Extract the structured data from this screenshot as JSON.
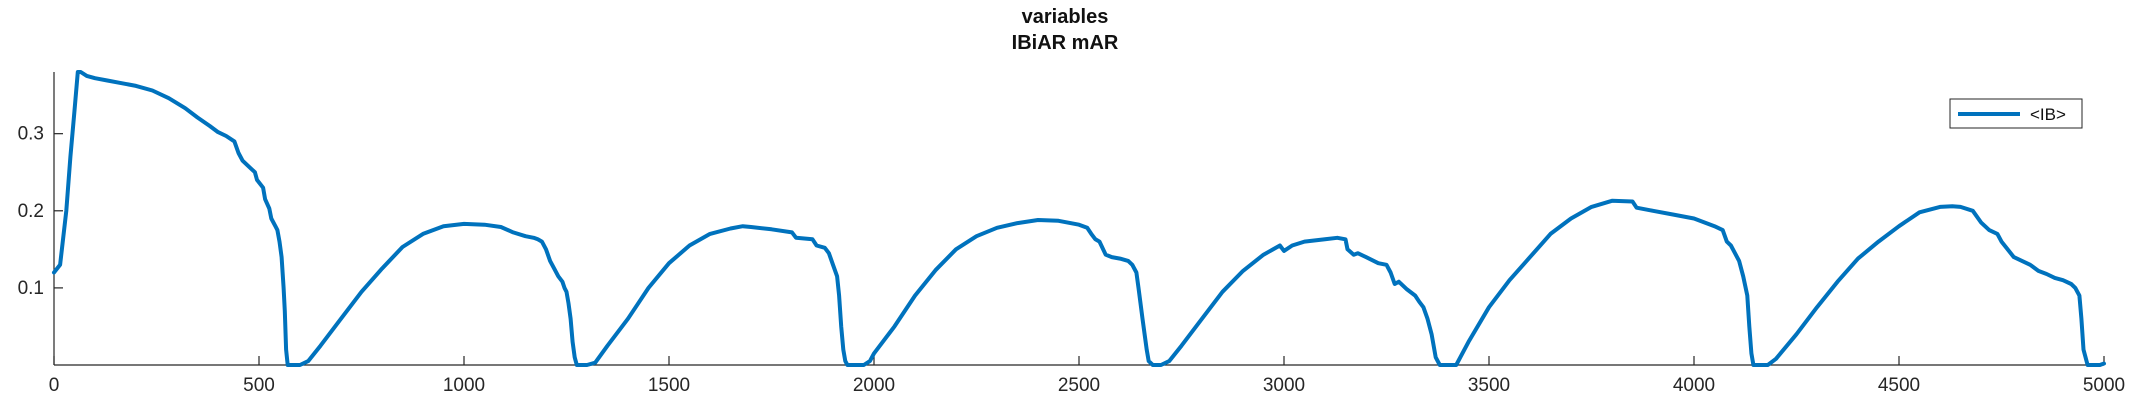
{
  "chart_data": {
    "type": "line",
    "title": "variables",
    "subtitle": "IBiAR mAR",
    "xlabel": "",
    "ylabel": "",
    "xlim": [
      0,
      5000
    ],
    "ylim": [
      0,
      0.38
    ],
    "xticks": [
      0,
      500,
      1000,
      1500,
      2000,
      2500,
      3000,
      3500,
      4000,
      4500,
      5000
    ],
    "yticks": [
      0.1,
      0.2,
      0.3
    ],
    "grid": false,
    "legend_position": "top-right",
    "series": [
      {
        "name": "<IB>",
        "color": "#0072BD",
        "points": [
          [
            0,
            0.12
          ],
          [
            15,
            0.13
          ],
          [
            30,
            0.2
          ],
          [
            40,
            0.27
          ],
          [
            50,
            0.33
          ],
          [
            58,
            0.38
          ],
          [
            65,
            0.38
          ],
          [
            80,
            0.375
          ],
          [
            100,
            0.372
          ],
          [
            130,
            0.369
          ],
          [
            160,
            0.366
          ],
          [
            200,
            0.362
          ],
          [
            240,
            0.356
          ],
          [
            280,
            0.346
          ],
          [
            320,
            0.333
          ],
          [
            350,
            0.321
          ],
          [
            380,
            0.31
          ],
          [
            400,
            0.302
          ],
          [
            420,
            0.297
          ],
          [
            440,
            0.29
          ],
          [
            450,
            0.275
          ],
          [
            460,
            0.265
          ],
          [
            480,
            0.255
          ],
          [
            490,
            0.25
          ],
          [
            495,
            0.24
          ],
          [
            510,
            0.23
          ],
          [
            515,
            0.215
          ],
          [
            525,
            0.203
          ],
          [
            530,
            0.19
          ],
          [
            540,
            0.18
          ],
          [
            545,
            0.175
          ],
          [
            550,
            0.16
          ],
          [
            555,
            0.14
          ],
          [
            560,
            0.1
          ],
          [
            563,
            0.07
          ],
          [
            566,
            0.02
          ],
          [
            570,
            0.0
          ],
          [
            600,
            0.0
          ],
          [
            620,
            0.005
          ],
          [
            650,
            0.025
          ],
          [
            700,
            0.06
          ],
          [
            750,
            0.095
          ],
          [
            800,
            0.125
          ],
          [
            850,
            0.153
          ],
          [
            900,
            0.17
          ],
          [
            950,
            0.18
          ],
          [
            1000,
            0.183
          ],
          [
            1050,
            0.182
          ],
          [
            1090,
            0.179
          ],
          [
            1120,
            0.172
          ],
          [
            1150,
            0.167
          ],
          [
            1170,
            0.165
          ],
          [
            1180,
            0.163
          ],
          [
            1190,
            0.16
          ],
          [
            1200,
            0.15
          ],
          [
            1210,
            0.135
          ],
          [
            1220,
            0.125
          ],
          [
            1230,
            0.115
          ],
          [
            1240,
            0.108
          ],
          [
            1245,
            0.1
          ],
          [
            1250,
            0.095
          ],
          [
            1255,
            0.08
          ],
          [
            1260,
            0.06
          ],
          [
            1265,
            0.03
          ],
          [
            1270,
            0.01
          ],
          [
            1275,
            0.0
          ],
          [
            1300,
            0.0
          ],
          [
            1320,
            0.003
          ],
          [
            1350,
            0.025
          ],
          [
            1400,
            0.06
          ],
          [
            1450,
            0.1
          ],
          [
            1500,
            0.132
          ],
          [
            1550,
            0.155
          ],
          [
            1600,
            0.17
          ],
          [
            1650,
            0.177
          ],
          [
            1680,
            0.18
          ],
          [
            1700,
            0.179
          ],
          [
            1750,
            0.176
          ],
          [
            1800,
            0.172
          ],
          [
            1810,
            0.165
          ],
          [
            1850,
            0.163
          ],
          [
            1860,
            0.155
          ],
          [
            1880,
            0.152
          ],
          [
            1890,
            0.145
          ],
          [
            1900,
            0.13
          ],
          [
            1910,
            0.115
          ],
          [
            1915,
            0.09
          ],
          [
            1920,
            0.05
          ],
          [
            1925,
            0.02
          ],
          [
            1930,
            0.005
          ],
          [
            1935,
            0.0
          ],
          [
            1975,
            0.0
          ],
          [
            1990,
            0.005
          ],
          [
            2000,
            0.015
          ],
          [
            2050,
            0.05
          ],
          [
            2100,
            0.09
          ],
          [
            2150,
            0.123
          ],
          [
            2200,
            0.15
          ],
          [
            2250,
            0.167
          ],
          [
            2300,
            0.178
          ],
          [
            2350,
            0.184
          ],
          [
            2400,
            0.188
          ],
          [
            2450,
            0.187
          ],
          [
            2500,
            0.182
          ],
          [
            2520,
            0.178
          ],
          [
            2530,
            0.17
          ],
          [
            2540,
            0.163
          ],
          [
            2550,
            0.16
          ],
          [
            2565,
            0.143
          ],
          [
            2580,
            0.14
          ],
          [
            2600,
            0.138
          ],
          [
            2620,
            0.135
          ],
          [
            2630,
            0.13
          ],
          [
            2640,
            0.12
          ],
          [
            2645,
            0.1
          ],
          [
            2650,
            0.08
          ],
          [
            2655,
            0.06
          ],
          [
            2660,
            0.04
          ],
          [
            2665,
            0.02
          ],
          [
            2670,
            0.005
          ],
          [
            2680,
            0.0
          ],
          [
            2700,
            0.0
          ],
          [
            2720,
            0.005
          ],
          [
            2750,
            0.025
          ],
          [
            2800,
            0.06
          ],
          [
            2850,
            0.095
          ],
          [
            2900,
            0.122
          ],
          [
            2950,
            0.143
          ],
          [
            2990,
            0.155
          ],
          [
            3000,
            0.148
          ],
          [
            3020,
            0.155
          ],
          [
            3050,
            0.16
          ],
          [
            3100,
            0.163
          ],
          [
            3130,
            0.165
          ],
          [
            3150,
            0.163
          ],
          [
            3155,
            0.15
          ],
          [
            3170,
            0.143
          ],
          [
            3180,
            0.145
          ],
          [
            3200,
            0.14
          ],
          [
            3230,
            0.132
          ],
          [
            3250,
            0.13
          ],
          [
            3260,
            0.12
          ],
          [
            3270,
            0.105
          ],
          [
            3280,
            0.108
          ],
          [
            3300,
            0.098
          ],
          [
            3320,
            0.09
          ],
          [
            3330,
            0.082
          ],
          [
            3340,
            0.075
          ],
          [
            3350,
            0.06
          ],
          [
            3360,
            0.04
          ],
          [
            3370,
            0.01
          ],
          [
            3380,
            0.0
          ],
          [
            3420,
            0.0
          ],
          [
            3430,
            0.01
          ],
          [
            3450,
            0.03
          ],
          [
            3500,
            0.075
          ],
          [
            3550,
            0.11
          ],
          [
            3600,
            0.14
          ],
          [
            3650,
            0.17
          ],
          [
            3700,
            0.19
          ],
          [
            3750,
            0.205
          ],
          [
            3800,
            0.213
          ],
          [
            3850,
            0.212
          ],
          [
            3860,
            0.204
          ],
          [
            3900,
            0.2
          ],
          [
            3950,
            0.195
          ],
          [
            4000,
            0.19
          ],
          [
            4050,
            0.18
          ],
          [
            4070,
            0.175
          ],
          [
            4080,
            0.16
          ],
          [
            4090,
            0.155
          ],
          [
            4100,
            0.145
          ],
          [
            4110,
            0.135
          ],
          [
            4120,
            0.115
          ],
          [
            4130,
            0.09
          ],
          [
            4135,
            0.05
          ],
          [
            4140,
            0.015
          ],
          [
            4145,
            0.0
          ],
          [
            4180,
            0.0
          ],
          [
            4200,
            0.008
          ],
          [
            4250,
            0.04
          ],
          [
            4300,
            0.075
          ],
          [
            4350,
            0.108
          ],
          [
            4400,
            0.138
          ],
          [
            4450,
            0.16
          ],
          [
            4500,
            0.18
          ],
          [
            4550,
            0.198
          ],
          [
            4600,
            0.205
          ],
          [
            4630,
            0.206
          ],
          [
            4650,
            0.205
          ],
          [
            4680,
            0.2
          ],
          [
            4700,
            0.185
          ],
          [
            4720,
            0.175
          ],
          [
            4740,
            0.17
          ],
          [
            4750,
            0.16
          ],
          [
            4780,
            0.14
          ],
          [
            4800,
            0.135
          ],
          [
            4820,
            0.13
          ],
          [
            4840,
            0.122
          ],
          [
            4860,
            0.118
          ],
          [
            4880,
            0.113
          ],
          [
            4900,
            0.11
          ],
          [
            4920,
            0.105
          ],
          [
            4930,
            0.1
          ],
          [
            4940,
            0.09
          ],
          [
            4945,
            0.06
          ],
          [
            4950,
            0.02
          ],
          [
            4960,
            0.0
          ],
          [
            4990,
            0.0
          ],
          [
            5000,
            0.002
          ]
        ]
      }
    ]
  }
}
